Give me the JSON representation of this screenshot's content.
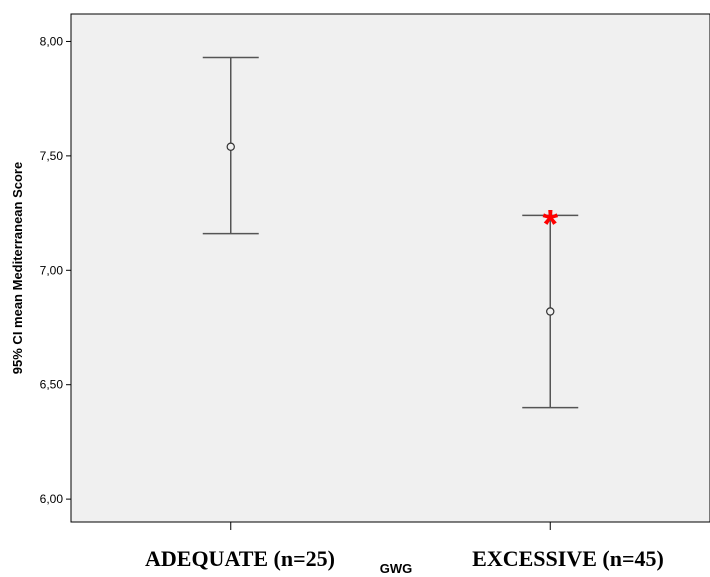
{
  "chart_data": {
    "type": "errorbar",
    "xlabel": "GWG",
    "ylabel": "95% CI mean Mediterranean Score",
    "ylim": [
      5.9,
      8.12
    ],
    "yticks": [
      "6,00",
      "6,50",
      "7,00",
      "7,50",
      "8,00"
    ],
    "ytick_values": [
      6.0,
      6.5,
      7.0,
      7.5,
      8.0
    ],
    "categories": [
      "ADEQUATE (n=25)",
      "EXCESSIVE (n=45)"
    ],
    "means": [
      7.54,
      6.82
    ],
    "lower": [
      7.16,
      6.4
    ],
    "upper": [
      7.93,
      7.24
    ],
    "annotations": [
      {
        "category": "EXCESSIVE (n=45)",
        "text": "*",
        "color": "#ff0000"
      }
    ],
    "grid": false,
    "plot_background": "#f0f0f0",
    "line_color": "#555555"
  }
}
